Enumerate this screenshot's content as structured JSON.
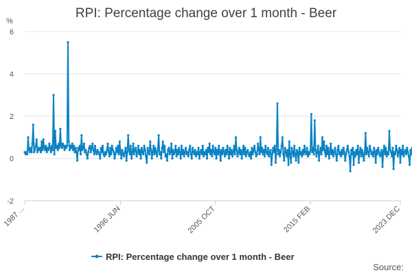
{
  "chart_data": {
    "type": "line",
    "title": "RPI: Percentage change over 1 month - Beer",
    "y_unit": "%",
    "ylim": [
      -2,
      6
    ],
    "yticks": [
      -2,
      0,
      2,
      4,
      6
    ],
    "x_range": [
      1987.0,
      2023.917
    ],
    "xticks": [
      {
        "label": "1987 ...",
        "x": 1987.0
      },
      {
        "label": "1996 JUN",
        "x": 1996.417
      },
      {
        "label": "2005 OCT",
        "x": 2005.75
      },
      {
        "label": "2015 FEB",
        "x": 2015.083
      },
      {
        "label": "2023 DEC",
        "x": 2023.917
      }
    ],
    "grid": true,
    "legend": "bottom-center",
    "colors": {
      "series": "#0b83c4"
    },
    "series": [
      {
        "name": "RPI: Percentage change over 1 month - Beer",
        "x_start": 1987.0,
        "x_step_months": 1,
        "values": [
          0.3,
          0.2,
          0.3,
          0.2,
          1.0,
          0.4,
          0.3,
          0.5,
          0.3,
          0.7,
          1.6,
          0.3,
          0.4,
          0.6,
          0.9,
          0.3,
          0.5,
          0.4,
          0.5,
          0.3,
          0.8,
          0.4,
          0.9,
          0.5,
          0.4,
          0.6,
          0.3,
          0.5,
          0.4,
          0.7,
          0.5,
          0.3,
          0.6,
          0.4,
          3.0,
          0.2,
          1.3,
          0.5,
          0.6,
          0.4,
          0.7,
          0.5,
          1.4,
          0.6,
          0.5,
          0.7,
          0.6,
          0.4,
          0.6,
          0.5,
          0.6,
          5.5,
          0.8,
          0.4,
          0.6,
          0.5,
          0.7,
          0.4,
          0.6,
          0.3,
          0.5,
          0.3,
          -0.1,
          0.5,
          0.4,
          0.6,
          0.2,
          1.1,
          0.4,
          0.5,
          0.7,
          0.3,
          0.4,
          0.2,
          0.0,
          0.3,
          0.5,
          0.6,
          0.3,
          0.5,
          0.7,
          0.4,
          0.2,
          0.6,
          0.3,
          0.2,
          0.4,
          0.3,
          0.2,
          0.0,
          0.5,
          0.3,
          0.6,
          0.2,
          0.1,
          0.3,
          0.2,
          0.4,
          0.7,
          0.3,
          0.1,
          0.5,
          0.2,
          0.6,
          0.4,
          0.3,
          0.0,
          0.2,
          0.5,
          0.3,
          0.6,
          0.2,
          0.8,
          0.3,
          0.0,
          0.4,
          0.2,
          0.1,
          0.3,
          0.5,
          -0.1,
          0.3,
          1.1,
          0.4,
          0.2,
          0.6,
          0.0,
          0.3,
          0.7,
          0.2,
          0.4,
          0.5,
          0.1,
          0.3,
          0.6,
          0.2,
          0.4,
          0.0,
          0.5,
          0.3,
          0.2,
          0.6,
          0.4,
          0.1,
          -0.2,
          0.5,
          0.3,
          0.2,
          0.8,
          0.4,
          0.0,
          0.3,
          0.6,
          0.2,
          0.5,
          0.3,
          0.1,
          0.4,
          1.1,
          0.2,
          0.3,
          0.0,
          0.5,
          0.8,
          0.3,
          0.6,
          0.1,
          0.2,
          -0.1,
          0.4,
          0.5,
          0.2,
          0.3,
          0.7,
          0.0,
          0.4,
          0.2,
          0.3,
          0.6,
          0.1,
          0.4,
          0.2,
          0.5,
          0.3,
          0.0,
          0.6,
          0.2,
          0.4,
          0.1,
          0.3,
          0.5,
          0.2,
          0.3,
          0.1,
          0.4,
          0.6,
          0.2,
          0.0,
          0.5,
          0.3,
          0.2,
          0.4,
          0.1,
          0.3,
          0.2,
          0.5,
          0.0,
          0.3,
          0.4,
          0.2,
          0.6,
          0.1,
          0.3,
          0.2,
          0.4,
          0.0,
          0.5,
          0.3,
          0.7,
          0.2,
          0.4,
          0.1,
          0.6,
          0.3,
          0.2,
          0.5,
          0.0,
          0.4,
          0.2,
          0.6,
          0.3,
          -0.1,
          0.4,
          0.2,
          0.5,
          0.3,
          0.1,
          0.4,
          0.2,
          0.6,
          0.3,
          0.0,
          0.5,
          0.2,
          0.4,
          0.1,
          0.3,
          0.6,
          0.2,
          1.0,
          0.4,
          0.1,
          0.3,
          0.5,
          0.2,
          0.4,
          0.0,
          0.3,
          0.6,
          0.2,
          0.5,
          0.1,
          0.3,
          0.4,
          0.2,
          0.1,
          0.3,
          0.0,
          0.5,
          0.2,
          0.4,
          0.6,
          0.3,
          0.1,
          0.2,
          0.7,
          0.4,
          0.2,
          1.0,
          0.3,
          0.5,
          0.2,
          0.4,
          0.1,
          0.6,
          0.3,
          0.2,
          0.5,
          0.1,
          0.3,
          0.4,
          -0.3,
          0.2,
          0.5,
          0.3,
          0.6,
          -0.2,
          0.4,
          2.6,
          0.2,
          0.4,
          0.1,
          0.3,
          0.6,
          1.0,
          0.2,
          -0.1,
          0.5,
          0.3,
          0.1,
          0.4,
          -0.3,
          0.8,
          0.2,
          -0.2,
          0.5,
          0.3,
          0.1,
          0.6,
          0.2,
          -0.1,
          0.4,
          0.3,
          -0.2,
          0.5,
          0.2,
          0.3,
          0.1,
          0.4,
          0.2,
          0.6,
          0.3,
          0.2,
          0.5,
          0.1,
          0.3,
          0.2,
          0.4,
          2.1,
          0.3,
          0.5,
          0.2,
          1.8,
          0.4,
          0.1,
          0.3,
          0.6,
          -0.1,
          0.3,
          0.5,
          0.2,
          1.0,
          0.4,
          0.8,
          0.3,
          0.1,
          0.6,
          0.2,
          0.5,
          0.0,
          0.3,
          0.7,
          0.2,
          0.4,
          0.1,
          0.3,
          0.5,
          0.2,
          -0.1,
          0.4,
          0.6,
          0.2,
          0.3,
          0.1,
          0.4,
          0.2,
          0.5,
          0.3,
          -0.1,
          0.2,
          0.4,
          0.6,
          0.3,
          0.1,
          -0.6,
          0.4,
          0.2,
          0.5,
          -0.3,
          0.3,
          0.1,
          0.4,
          0.2,
          0.6,
          -0.2,
          0.3,
          0.5,
          0.1,
          0.4,
          0.2,
          -0.1,
          0.3,
          1.2,
          0.2,
          0.5,
          0.3,
          0.1,
          0.6,
          0.4,
          0.2,
          0.3,
          0.1,
          0.5,
          0.3,
          -0.2,
          0.4,
          0.2,
          0.5,
          0.3,
          0.1,
          0.2,
          0.4,
          -0.4,
          0.3,
          0.6,
          0.2,
          0.5,
          0.1,
          0.3,
          0.2,
          1.3,
          0.4,
          0.3,
          0.1,
          0.5,
          -0.5,
          0.3,
          0.2,
          0.6,
          0.4,
          0.1,
          0.3,
          0.5,
          -0.2,
          0.4,
          0.2,
          0.6,
          0.1,
          0.3,
          0.4,
          0.2,
          0.5,
          0.3,
          0.1,
          -0.3,
          0.4,
          0.2,
          0.5,
          0.3,
          0.1,
          0.6,
          0.2,
          0.4,
          0.3,
          0.5,
          0.8,
          0.2,
          0.4,
          0.6,
          0.3,
          0.1,
          0.5,
          2.6,
          0.9,
          -0.2,
          0.4,
          0.3,
          1.2,
          0.6,
          0.8,
          0.3,
          0.6,
          -0.1,
          0.5
        ]
      }
    ],
    "source_label": "Source:"
  }
}
